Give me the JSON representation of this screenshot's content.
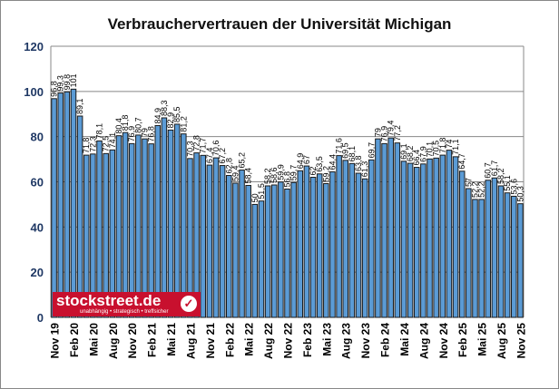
{
  "chart_data": {
    "type": "bar",
    "title": "Verbrauchervertrauen der Universität Michigan",
    "xlabel": "",
    "ylabel": "",
    "ylim": [
      0,
      120
    ],
    "yticks": [
      0,
      20,
      40,
      60,
      80,
      100,
      120
    ],
    "grid": true,
    "bar_color": "#5b9bd5",
    "categories": [
      "Nov 19",
      "Dez 19",
      "Jan 20",
      "Feb 20",
      "Mrz 20",
      "Apr 20",
      "Mai 20",
      "Jun 20",
      "Jul 20",
      "Aug 20",
      "Sep 20",
      "Okt 20",
      "Nov 20",
      "Dez 20",
      "Jan 21",
      "Feb 21",
      "Mrz 21",
      "Apr 21",
      "Mai 21",
      "Jun 21",
      "Jul 21",
      "Aug 21",
      "Sep 21",
      "Okt 21",
      "Nov 21",
      "Dez 21",
      "Jan 22",
      "Feb 22",
      "Mrz 22",
      "Apr 22",
      "Mai 22",
      "Jun 22",
      "Jul 22",
      "Aug 22",
      "Sep 22",
      "Okt 22",
      "Nov 22",
      "Dez 22",
      "Jan 23",
      "Feb 23",
      "Mrz 23",
      "Apr 23",
      "Mai 23",
      "Jun 23",
      "Jul 23",
      "Aug 23",
      "Sep 23",
      "Okt 23",
      "Nov 23",
      "Dez 23",
      "Jan 24",
      "Feb 24",
      "Mrz 24",
      "Apr 24",
      "Mai 24",
      "Jun 24",
      "Jul 24",
      "Aug 24",
      "Sep 24",
      "Okt 24",
      "Nov 24",
      "Dez 24",
      "Jan 25",
      "Feb 25",
      "Mrz 25",
      "Apr 25",
      "Mai 25",
      "Jun 25",
      "Jul 25",
      "Aug 25",
      "Sep 25",
      "Okt 25",
      "Nov 25"
    ],
    "shown_xticks": [
      "Nov 19",
      "Feb 20",
      "Mai 20",
      "Aug 20",
      "Nov 20",
      "Feb 21",
      "Mai 21",
      "Aug 21",
      "Nov 21",
      "Feb 22",
      "Mai 22",
      "Aug 22",
      "Nov 22",
      "Feb 23",
      "Mai 23",
      "Aug 23",
      "Nov 23",
      "Feb 24",
      "Mai 24",
      "Aug 24",
      "Nov 24",
      "Feb 25",
      "Mai 25",
      "Aug 25",
      "Nov 25"
    ],
    "values": [
      96.8,
      99.3,
      99.8,
      101,
      89.1,
      71.8,
      72.3,
      78.1,
      72.5,
      74.1,
      80.4,
      81.8,
      76.9,
      80.7,
      79,
      76.8,
      84.9,
      88.3,
      82.9,
      85.5,
      81.2,
      70.3,
      72.8,
      71.7,
      67.4,
      70.6,
      67.2,
      62.8,
      59.4,
      65.2,
      58.4,
      50,
      51.5,
      58.2,
      58.6,
      59.9,
      56.8,
      59.7,
      64.9,
      67,
      62,
      63.5,
      59.2,
      64.4,
      71.6,
      69.5,
      68.1,
      63.8,
      61.3,
      69.7,
      79,
      76.9,
      79.4,
      77.2,
      69.1,
      68.2,
      66.4,
      67.9,
      70.1,
      70.5,
      71.8,
      74,
      71.1,
      64.7,
      57,
      52.2,
      52.2,
      60.7,
      61.7,
      58.2,
      55.1,
      53.6,
      50.3
    ]
  },
  "logo": {
    "name": "stockstreet.de",
    "tagline": "unabhängig • strategisch • treffsicher"
  }
}
